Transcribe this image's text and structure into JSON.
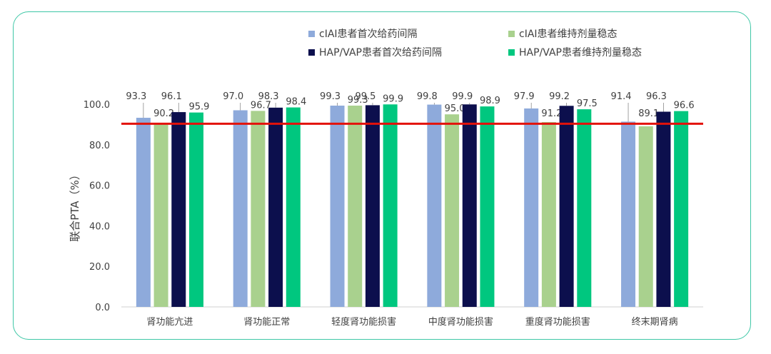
{
  "chart_data": {
    "type": "bar",
    "title": "",
    "xlabel": "",
    "ylabel": "联合PTA（%）",
    "ylim": [
      0,
      100
    ],
    "yticks": [
      "0.0",
      "20.0",
      "40.0",
      "60.0",
      "80.0",
      "100.0"
    ],
    "categories": [
      "肾功能亢进",
      "肾功能正常",
      "轻度肾功能损害",
      "中度肾功能损害",
      "重度肾功能损害",
      "终末期肾病"
    ],
    "series": [
      {
        "name": "cIAI患者首次给药间隔",
        "color": "#8eaadb",
        "values": [
          93.3,
          97.0,
          99.3,
          99.8,
          97.9,
          91.4
        ],
        "labels": [
          "93.3",
          "97.0",
          "99.3",
          "99.8",
          "97.9",
          "91.4"
        ]
      },
      {
        "name": "cIAI患者维持剂量稳态",
        "color": "#a9d18e",
        "values": [
          90.2,
          96.7,
          99.3,
          95.0,
          91.2,
          89.1
        ],
        "labels": [
          "90.2",
          "96.7",
          "99.3",
          "95.0",
          "91.2",
          "89.1"
        ]
      },
      {
        "name": "HAP/VAP患者首次给药间隔",
        "color": "#0c0f4d",
        "values": [
          96.1,
          98.3,
          99.5,
          99.9,
          99.2,
          96.3
        ],
        "labels": [
          "96.1",
          "98.3",
          "99.5",
          "99.9",
          "99.2",
          "96.3"
        ]
      },
      {
        "name": "HAP/VAP患者维持剂量稳态",
        "color": "#00c77f",
        "values": [
          95.9,
          98.4,
          99.9,
          98.9,
          97.5,
          96.6
        ],
        "labels": [
          "95.9",
          "98.4",
          "99.9",
          "98.9",
          "97.5",
          "96.6"
        ]
      }
    ],
    "reference_line": {
      "value": 90,
      "color": "#e3120b"
    },
    "grid": false,
    "legend_position": "top-right"
  },
  "frame_color": "#3ec7a6"
}
